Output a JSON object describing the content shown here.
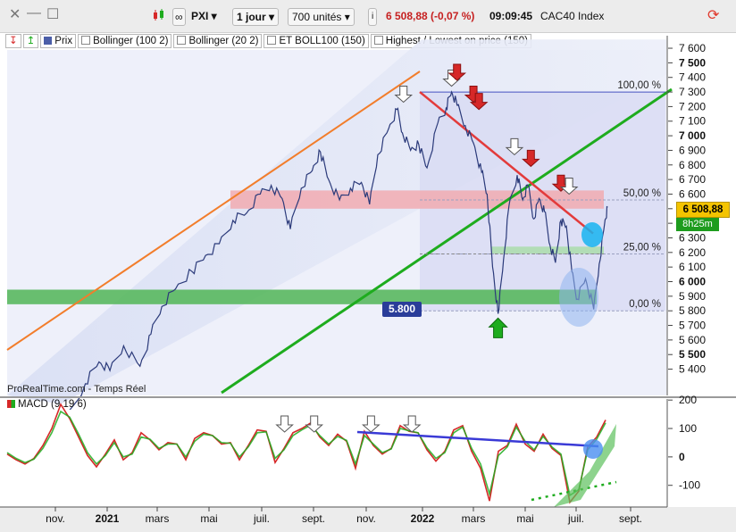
{
  "toolbar": {
    "ticker": "PXI",
    "interval": "1 jour",
    "units": "700 unités",
    "quote": "6 508,88 (-0,07 %)",
    "time": "09:09:45",
    "instrument": "CAC40 Index",
    "close_icon": "close-icon",
    "minimize_icon": "minimize-icon",
    "maximize_icon": "maximize-icon"
  },
  "legend": [
    "Prix",
    "Bollinger (100 2)",
    "Bollinger (20 2)",
    "ET BOLL100 (150)",
    "Highest / Lowest on price (150)"
  ],
  "source_text": "ProRealTime.com - Temps Réel",
  "macd_label": "MACD (9 19 6)",
  "price_badge": "6 508,88",
  "countdown": "8h25m",
  "level_box": "5.800",
  "colors": {
    "price_badge": "#f4c400",
    "level_box": "#2a3d99",
    "fall": "#d62828",
    "green": "#1eac1e",
    "orange": "#f27d2b"
  },
  "chart_data": [
    {
      "type": "line",
      "name": "price",
      "x_ticks": [
        "nov.",
        "2021",
        "mars",
        "mai",
        "juil.",
        "sept.",
        "nov.",
        "2022",
        "mars",
        "mai",
        "juil.",
        "sept."
      ],
      "y_ticks": [
        "7 600",
        "7 500",
        "7 400",
        "7 300",
        "7 200",
        "7 100",
        "7 000",
        "6 900",
        "6 800",
        "6 700",
        "6 600",
        "6 500",
        "6 400",
        "6 300",
        "6 200",
        "6 100",
        "6 000",
        "5 900",
        "5 800",
        "5 700",
        "5 600",
        "5 500",
        "5 400"
      ],
      "y_bold": [
        "7 500",
        "7 000",
        "6 000",
        "5 500"
      ],
      "ylim": [
        5330,
        7640
      ],
      "fib_levels": [
        {
          "label": "100,00 %",
          "value": 7300
        },
        {
          "label": "50,00 %",
          "value": 6560
        },
        {
          "label": "25,00 %",
          "value": 6190
        },
        {
          "label": "0,00 %",
          "value": 5800
        }
      ],
      "zones": [
        {
          "name": "resistance",
          "from": 6500,
          "to": 6625
        },
        {
          "name": "support",
          "from": 5845,
          "to": 5945
        },
        {
          "name": "minor",
          "from": 6190,
          "to": 6240
        }
      ],
      "points": [
        {
          "x": 0.0,
          "y": 5010
        },
        {
          "x": 0.045,
          "y": 5300
        },
        {
          "x": 0.07,
          "y": 5450
        },
        {
          "x": 0.09,
          "y": 5390
        },
        {
          "x": 0.115,
          "y": 5560
        },
        {
          "x": 0.145,
          "y": 5420
        },
        {
          "x": 0.165,
          "y": 5640
        },
        {
          "x": 0.185,
          "y": 5830
        },
        {
          "x": 0.21,
          "y": 5950
        },
        {
          "x": 0.24,
          "y": 6070
        },
        {
          "x": 0.265,
          "y": 6180
        },
        {
          "x": 0.29,
          "y": 6260
        },
        {
          "x": 0.315,
          "y": 6420
        },
        {
          "x": 0.34,
          "y": 6470
        },
        {
          "x": 0.365,
          "y": 6600
        },
        {
          "x": 0.385,
          "y": 6660
        },
        {
          "x": 0.405,
          "y": 6570
        },
        {
          "x": 0.42,
          "y": 6360
        },
        {
          "x": 0.44,
          "y": 6640
        },
        {
          "x": 0.46,
          "y": 6760
        },
        {
          "x": 0.475,
          "y": 6890
        },
        {
          "x": 0.49,
          "y": 6700
        },
        {
          "x": 0.51,
          "y": 6560
        },
        {
          "x": 0.53,
          "y": 6640
        },
        {
          "x": 0.55,
          "y": 6680
        },
        {
          "x": 0.565,
          "y": 6530
        },
        {
          "x": 0.58,
          "y": 6870
        },
        {
          "x": 0.6,
          "y": 7050
        },
        {
          "x": 0.615,
          "y": 7180
        },
        {
          "x": 0.625,
          "y": 7020
        },
        {
          "x": 0.64,
          "y": 6900
        },
        {
          "x": 0.655,
          "y": 6940
        },
        {
          "x": 0.67,
          "y": 6780
        },
        {
          "x": 0.69,
          "y": 7090
        },
        {
          "x": 0.705,
          "y": 7190
        },
        {
          "x": 0.715,
          "y": 7300
        },
        {
          "x": 0.725,
          "y": 7210
        },
        {
          "x": 0.74,
          "y": 7070
        },
        {
          "x": 0.755,
          "y": 6950
        },
        {
          "x": 0.77,
          "y": 6750
        },
        {
          "x": 0.78,
          "y": 6600
        },
        {
          "x": 0.79,
          "y": 6100
        },
        {
          "x": 0.8,
          "y": 5780
        },
        {
          "x": 0.81,
          "y": 6150
        },
        {
          "x": 0.82,
          "y": 6520
        },
        {
          "x": 0.835,
          "y": 6730
        },
        {
          "x": 0.845,
          "y": 6560
        },
        {
          "x": 0.855,
          "y": 6660
        },
        {
          "x": 0.865,
          "y": 6430
        },
        {
          "x": 0.875,
          "y": 6570
        },
        {
          "x": 0.885,
          "y": 6480
        },
        {
          "x": 0.895,
          "y": 6250
        },
        {
          "x": 0.905,
          "y": 6130
        },
        {
          "x": 0.915,
          "y": 6420
        },
        {
          "x": 0.925,
          "y": 6380
        },
        {
          "x": 0.935,
          "y": 6070
        },
        {
          "x": 0.945,
          "y": 5880
        },
        {
          "x": 0.96,
          "y": 6020
        },
        {
          "x": 0.975,
          "y": 5810
        },
        {
          "x": 0.985,
          "y": 6120
        },
        {
          "x": 0.995,
          "y": 6400
        },
        {
          "x": 1.0,
          "y": 6508
        }
      ],
      "down_arrows": [
        {
          "x": 0.627,
          "y": 7230,
          "color": "white"
        },
        {
          "x": 0.715,
          "y": 7340,
          "color": "white"
        },
        {
          "x": 0.725,
          "y": 7380,
          "color": "red"
        },
        {
          "x": 0.755,
          "y": 7230,
          "color": "red"
        },
        {
          "x": 0.765,
          "y": 7180,
          "color": "red"
        },
        {
          "x": 0.83,
          "y": 6870,
          "color": "white"
        },
        {
          "x": 0.86,
          "y": 6790,
          "color": "red"
        },
        {
          "x": 0.915,
          "y": 6620,
          "color": "red"
        },
        {
          "x": 0.93,
          "y": 6600,
          "color": "white"
        }
      ],
      "up_arrows": [
        {
          "x": 0.8,
          "y": 5750,
          "color": "green"
        }
      ]
    },
    {
      "type": "line",
      "name": "MACD (9 19 6)",
      "y_ticks": [
        "200",
        "100",
        "0",
        "-100"
      ],
      "ylim": [
        -170,
        210
      ],
      "series": [
        {
          "name": "MACD",
          "values": [
            10,
            -10,
            -25,
            -5,
            40,
            100,
            185,
            135,
            70,
            5,
            -35,
            10,
            60,
            -10,
            15,
            85,
            60,
            25,
            50,
            45,
            -10,
            65,
            85,
            75,
            45,
            50,
            -10,
            40,
            95,
            90,
            -20,
            30,
            85,
            100,
            120,
            70,
            40,
            80,
            55,
            -40,
            90,
            40,
            10,
            30,
            110,
            90,
            85,
            25,
            -15,
            20,
            95,
            110,
            20,
            -40,
            -155,
            20,
            40,
            115,
            45,
            20,
            80,
            30,
            5,
            -160,
            -120,
            35,
            70,
            130
          ]
        },
        {
          "name": "Signal",
          "values": [
            15,
            -5,
            -20,
            -8,
            30,
            85,
            160,
            140,
            80,
            15,
            -25,
            5,
            50,
            0,
            10,
            70,
            62,
            30,
            45,
            45,
            0,
            55,
            80,
            75,
            50,
            48,
            0,
            35,
            85,
            88,
            -5,
            25,
            75,
            95,
            112,
            75,
            45,
            72,
            58,
            -25,
            75,
            45,
            15,
            28,
            100,
            92,
            85,
            32,
            -5,
            15,
            85,
            105,
            30,
            -25,
            -130,
            5,
            35,
            105,
            55,
            25,
            72,
            35,
            10,
            -135,
            -115,
            25,
            62,
            120
          ]
        }
      ],
      "down_arrows": [
        {
          "x": 0.61
        },
        {
          "x": 0.675
        },
        {
          "x": 0.8
        },
        {
          "x": 0.89
        }
      ]
    }
  ]
}
